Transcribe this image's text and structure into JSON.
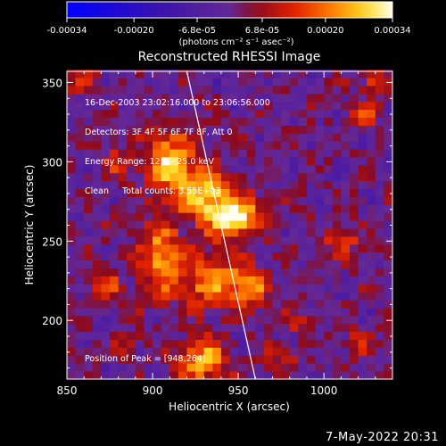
{
  "chart_data": {
    "type": "heatmap",
    "title": "Reconstructed RHESSI Image",
    "xlabel": "Heliocentric X (arcsec)",
    "ylabel": "Heliocentric Y (arcsec)",
    "xlim": [
      850,
      1040
    ],
    "ylim": [
      163,
      357
    ],
    "x_ticks": [
      850,
      900,
      950,
      1000
    ],
    "y_ticks": [
      200,
      250,
      300,
      350
    ],
    "colorbar": {
      "range": [
        -0.00034,
        0.00034
      ],
      "tick_labels": [
        "-0.00034",
        "-0.00020",
        "-6.8e-05",
        "6.8e-05",
        "0.00020",
        "0.00034"
      ],
      "tick_values": [
        -0.00034,
        -0.0002,
        -6.8e-05,
        6.8e-05,
        0.0002,
        0.00034
      ],
      "units": "(photons cm⁻² s⁻¹ asec⁻²)"
    },
    "limb_line": [
      [
        920,
        357
      ],
      [
        960,
        163
      ]
    ],
    "peak": [
      948,
      264
    ],
    "sources": [
      {
        "x": 947,
        "y": 265,
        "sx": 11,
        "sy": 9,
        "amp": 1.0
      },
      {
        "x": 910,
        "y": 300,
        "sx": 10,
        "sy": 14,
        "amp": 0.8
      },
      {
        "x": 930,
        "y": 280,
        "sx": 12,
        "sy": 10,
        "amp": 0.75
      },
      {
        "x": 905,
        "y": 240,
        "sx": 9,
        "sy": 16,
        "amp": 0.7
      },
      {
        "x": 935,
        "y": 225,
        "sx": 12,
        "sy": 12,
        "amp": 0.65
      },
      {
        "x": 957,
        "y": 222,
        "sx": 8,
        "sy": 10,
        "amp": 0.55
      },
      {
        "x": 930,
        "y": 175,
        "sx": 10,
        "sy": 10,
        "amp": 0.7
      },
      {
        "x": 880,
        "y": 300,
        "sx": 5,
        "sy": 7,
        "amp": 0.35
      },
      {
        "x": 1010,
        "y": 250,
        "sx": 7,
        "sy": 6,
        "amp": 0.45
      },
      {
        "x": 1022,
        "y": 330,
        "sx": 6,
        "sy": 5,
        "amp": 0.5
      },
      {
        "x": 1030,
        "y": 350,
        "sx": 5,
        "sy": 5,
        "amp": 0.5
      },
      {
        "x": 872,
        "y": 222,
        "sx": 6,
        "sy": 6,
        "amp": 0.45
      },
      {
        "x": 885,
        "y": 185,
        "sx": 6,
        "sy": 5,
        "amp": 0.35
      },
      {
        "x": 1020,
        "y": 185,
        "sx": 6,
        "sy": 6,
        "amp": 0.4
      },
      {
        "x": 985,
        "y": 200,
        "sx": 6,
        "sy": 5,
        "amp": 0.3
      },
      {
        "x": 860,
        "y": 350,
        "sx": 6,
        "sy": 5,
        "amp": 0.4
      },
      {
        "x": 975,
        "y": 175,
        "sx": 7,
        "sy": 5,
        "amp": 0.3
      }
    ],
    "info_lines": [
      "16-Dec-2003 23:02:16.000 to 23:06:56.000",
      "Detectors: 3F 4F 5F 6F 7F 8F, Att 0",
      "Energy Range: 12.0 - 25.0 keV",
      "Clean     Total counts: 3.55E+03"
    ],
    "peak_label": "Position of Peak = [948,264]"
  },
  "footer_date": "7-May-2022 20:31"
}
